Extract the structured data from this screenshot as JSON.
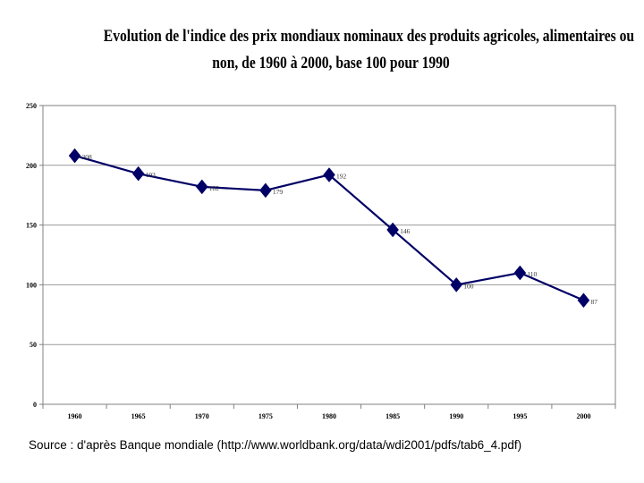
{
  "chart_data": {
    "type": "line",
    "title_line1": "Evolution de l'indice des prix mondiaux nominaux des produits agricoles, alimentaires ou",
    "title_line2": "non, de 1960 à 2000, base 100 pour 1990",
    "x": [
      1960,
      1965,
      1970,
      1975,
      1980,
      1985,
      1990,
      1995,
      2000
    ],
    "values": [
      208,
      193,
      182,
      179,
      192,
      146,
      100,
      110,
      87
    ],
    "x_tick_labels": [
      "1960",
      "1965",
      "1970",
      "1975",
      "1980",
      "1985",
      "1990",
      "1995",
      "2000"
    ],
    "y_ticks": [
      0,
      50,
      100,
      150,
      200,
      250
    ],
    "ylim": [
      0,
      250
    ],
    "grid": true,
    "line_color": "#000066",
    "marker": "diamond",
    "xlabel": "",
    "ylabel": ""
  },
  "source_text": "Source : d'après Banque mondiale (http://www.worldbank.org/data/wdi2001/pdfs/tab6_4.pdf)"
}
